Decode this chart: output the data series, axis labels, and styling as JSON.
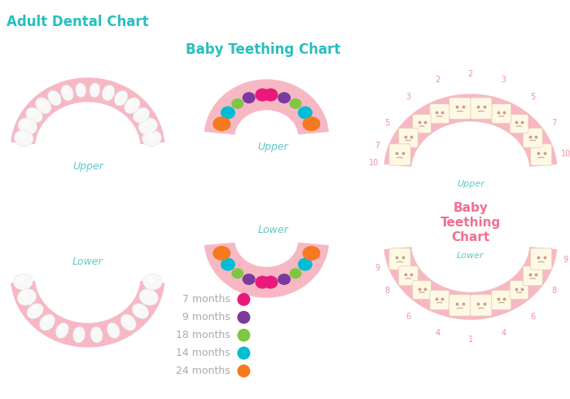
{
  "title1": "Adult Dental Chart",
  "title2": "Baby Teething Chart",
  "title3_line1": "Baby",
  "title3_line2": "Teething",
  "title3_line3": "Chart",
  "title_color": "#2abebe",
  "pink_color": "#f7b8c4",
  "pink_light": "#fbd0d8",
  "white_tooth": "#f8f8f8",
  "cream_tooth": "#fef9e4",
  "upper_lower_color": "#5ec8c8",
  "legend_label_color": "#aaaaaa",
  "legend_items": [
    {
      "label": "7 months",
      "color": "#e8197a"
    },
    {
      "label": "9 months",
      "color": "#7b3b9e"
    },
    {
      "label": "18 months",
      "color": "#7dc743"
    },
    {
      "label": "14 months",
      "color": "#00bcd4"
    },
    {
      "label": "24 months",
      "color": "#f47920"
    }
  ],
  "bg_color": "#ffffff",
  "pink_title3": "#f07090",
  "num_color": "#f090a0"
}
